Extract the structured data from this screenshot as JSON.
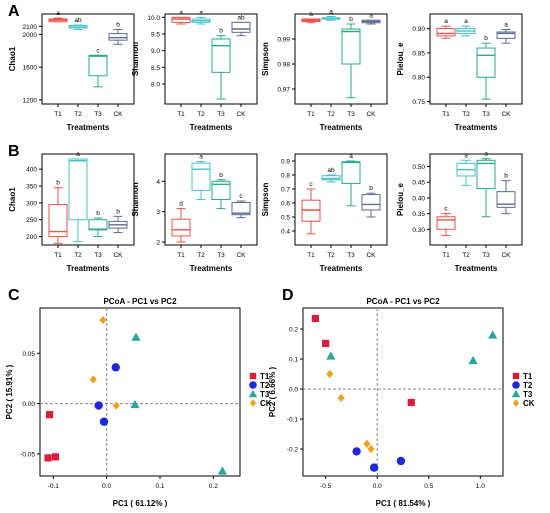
{
  "figure": {
    "colors": {
      "T1": "#e8524f",
      "T2": "#47c3c8",
      "T3": "#2aa98b",
      "CK": "#5e6b94",
      "axis": "#000000",
      "grid_line": "#888888"
    },
    "point_colors": {
      "T1": "#d81e3a",
      "T2": "#1e28e0",
      "T3": "#27a69a",
      "CK": "#f0a020"
    }
  },
  "chart_data": [
    {
      "panel": "A",
      "type": "box",
      "ylabel": "Chao1",
      "xlabel": "Treatments",
      "categories": [
        "T1",
        "T2",
        "T3",
        "CK"
      ],
      "ylim": [
        1150,
        2250
      ],
      "yticks": [
        1200,
        1600,
        2000,
        2100
      ],
      "yticks_shown": [
        "1200",
        "1600",
        "2000",
        "2100"
      ],
      "boxes": [
        {
          "min": 2155,
          "q1": 2155,
          "median": 2175,
          "q3": 2190,
          "max": 2200
        },
        {
          "min": 2060,
          "q1": 2080,
          "median": 2090,
          "q3": 2110,
          "max": 2115
        },
        {
          "min": 1360,
          "q1": 1495,
          "median": 1735,
          "q3": 1745,
          "max": 1745
        },
        {
          "min": 1880,
          "q1": 1930,
          "median": 1960,
          "q3": 2010,
          "max": 2060
        }
      ],
      "letters": [
        "a",
        "ab",
        "c",
        "b"
      ]
    },
    {
      "panel": "A",
      "type": "box",
      "ylabel": "Shannon",
      "xlabel": "Treatments",
      "categories": [
        "T1",
        "T2",
        "T3",
        "CK"
      ],
      "ylim": [
        7.4,
        10.1
      ],
      "yticks_shown": [
        "8.0",
        "8.5",
        "9.0",
        "9.5",
        "10.0"
      ],
      "yticks": [
        8.0,
        8.5,
        9.0,
        9.5,
        10.0
      ],
      "boxes": [
        {
          "min": 9.8,
          "q1": 9.85,
          "median": 9.95,
          "q3": 10.0,
          "max": 10.0
        },
        {
          "min": 9.8,
          "q1": 9.85,
          "median": 9.9,
          "q3": 9.95,
          "max": 10.0
        },
        {
          "min": 7.55,
          "q1": 8.35,
          "median": 9.15,
          "q3": 9.35,
          "max": 9.45
        },
        {
          "min": 9.45,
          "q1": 9.55,
          "median": 9.65,
          "q3": 9.85,
          "max": 9.85
        }
      ],
      "letters": [
        "a",
        "a",
        "b",
        "ab"
      ]
    },
    {
      "panel": "A",
      "type": "box",
      "ylabel": "Simpson",
      "xlabel": "Treatments",
      "categories": [
        "T1",
        "T2",
        "T3",
        "CK"
      ],
      "ylim": [
        0.964,
        1.0
      ],
      "yticks_shown": [
        "0.97",
        "0.98",
        "0.99"
      ],
      "yticks": [
        0.97,
        0.98,
        0.99
      ],
      "boxes": [
        {
          "min": 0.9965,
          "q1": 0.997,
          "median": 0.9975,
          "q3": 0.998,
          "max": 0.998
        },
        {
          "min": 0.9975,
          "q1": 0.998,
          "median": 0.998,
          "q3": 0.9985,
          "max": 0.999
        },
        {
          "min": 0.9665,
          "q1": 0.98,
          "median": 0.993,
          "q3": 0.994,
          "max": 0.996
        },
        {
          "min": 0.996,
          "q1": 0.9965,
          "median": 0.997,
          "q3": 0.9975,
          "max": 0.9975
        }
      ],
      "letters": [
        "a",
        "a",
        "b",
        "a"
      ]
    },
    {
      "panel": "A",
      "type": "box",
      "ylabel": "Pielou_e",
      "xlabel": "Treatments",
      "categories": [
        "T1",
        "T2",
        "T3",
        "CK"
      ],
      "ylim": [
        0.745,
        0.93
      ],
      "yticks_shown": [
        "0.75",
        "0.80",
        "0.85",
        "0.90"
      ],
      "yticks": [
        0.75,
        0.8,
        0.85,
        0.9
      ],
      "boxes": [
        {
          "min": 0.88,
          "q1": 0.885,
          "median": 0.89,
          "q3": 0.9,
          "max": 0.905
        },
        {
          "min": 0.885,
          "q1": 0.89,
          "median": 0.895,
          "q3": 0.9,
          "max": 0.905
        },
        {
          "min": 0.755,
          "q1": 0.8,
          "median": 0.845,
          "q3": 0.86,
          "max": 0.87
        },
        {
          "min": 0.87,
          "q1": 0.88,
          "median": 0.89,
          "q3": 0.893,
          "max": 0.898
        }
      ],
      "letters": [
        "a",
        "a",
        "b",
        "a"
      ]
    },
    {
      "panel": "B",
      "type": "box",
      "ylabel": "Chao1",
      "xlabel": "Treatments",
      "categories": [
        "T1",
        "T2",
        "T3",
        "CK"
      ],
      "ylim": [
        175,
        445
      ],
      "yticks_shown": [
        "200",
        "250",
        "300",
        "350",
        "400"
      ],
      "yticks": [
        200,
        250,
        300,
        350,
        400
      ],
      "boxes": [
        {
          "min": 180,
          "q1": 200,
          "median": 215,
          "q3": 295,
          "max": 345
        },
        {
          "min": 185,
          "q1": 250,
          "median": 425,
          "q3": 430,
          "max": 430
        },
        {
          "min": 200,
          "q1": 220,
          "median": 222,
          "q3": 250,
          "max": 255
        },
        {
          "min": 212,
          "q1": 225,
          "median": 235,
          "q3": 245,
          "max": 260
        }
      ],
      "letters": [
        "b",
        "a",
        "b",
        "b"
      ]
    },
    {
      "panel": "B",
      "type": "box",
      "ylabel": "Shannon",
      "xlabel": "Treatments",
      "categories": [
        "T1",
        "T2",
        "T3",
        "CK"
      ],
      "ylim": [
        1.9,
        4.9
      ],
      "yticks_shown": [
        "2",
        "3",
        "4"
      ],
      "yticks": [
        2,
        3,
        4
      ],
      "boxes": [
        {
          "min": 2.0,
          "q1": 2.2,
          "median": 2.4,
          "q3": 2.75,
          "max": 3.1
        },
        {
          "min": 3.4,
          "q1": 3.7,
          "median": 4.4,
          "q3": 4.6,
          "max": 4.65
        },
        {
          "min": 3.1,
          "q1": 3.4,
          "median": 3.9,
          "q3": 4.0,
          "max": 4.05
        },
        {
          "min": 2.8,
          "q1": 2.9,
          "median": 2.95,
          "q3": 3.3,
          "max": 3.35
        }
      ],
      "letters": [
        "d",
        "a",
        "b",
        "c"
      ]
    },
    {
      "panel": "B",
      "type": "box",
      "ylabel": "Simpson",
      "xlabel": "Treatments",
      "categories": [
        "T1",
        "T2",
        "T3",
        "CK"
      ],
      "ylim": [
        0.3,
        0.95
      ],
      "yticks_shown": [
        "0.4",
        "0.5",
        "0.6",
        "0.7",
        "0.8",
        "0.9"
      ],
      "yticks": [
        0.4,
        0.5,
        0.6,
        0.7,
        0.8,
        0.9
      ],
      "boxes": [
        {
          "min": 0.38,
          "q1": 0.47,
          "median": 0.55,
          "q3": 0.62,
          "max": 0.7
        },
        {
          "min": 0.75,
          "q1": 0.765,
          "median": 0.775,
          "q3": 0.795,
          "max": 0.8
        },
        {
          "min": 0.58,
          "q1": 0.74,
          "median": 0.89,
          "q3": 0.895,
          "max": 0.9
        },
        {
          "min": 0.5,
          "q1": 0.55,
          "median": 0.59,
          "q3": 0.66,
          "max": 0.67
        }
      ],
      "letters": [
        "c",
        "ab",
        "a",
        "b"
      ]
    },
    {
      "panel": "B",
      "type": "box",
      "ylabel": "Pielou_e",
      "xlabel": "Treatments",
      "categories": [
        "T1",
        "T2",
        "T3",
        "CK"
      ],
      "ylim": [
        0.25,
        0.54
      ],
      "yticks_shown": [
        "0.30",
        "0.35",
        "0.40",
        "0.45",
        "0.50"
      ],
      "yticks": [
        0.3,
        0.35,
        0.4,
        0.45,
        0.5
      ],
      "boxes": [
        {
          "min": 0.28,
          "q1": 0.3,
          "median": 0.33,
          "q3": 0.34,
          "max": 0.35
        },
        {
          "min": 0.44,
          "q1": 0.47,
          "median": 0.49,
          "q3": 0.51,
          "max": 0.52
        },
        {
          "min": 0.34,
          "q1": 0.43,
          "median": 0.51,
          "q3": 0.52,
          "max": 0.525
        },
        {
          "min": 0.35,
          "q1": 0.37,
          "median": 0.38,
          "q3": 0.42,
          "max": 0.455
        }
      ],
      "letters": [
        "c",
        "a",
        "a",
        "b"
      ]
    },
    {
      "panel": "C",
      "type": "scatter",
      "title": "PCoA - PC1 vs PC2",
      "xlabel": "PC1 ( 61.12% )",
      "ylabel": "PC2 ( 15.91% )",
      "xlim": [
        -0.125,
        0.25
      ],
      "ylim": [
        -0.072,
        0.095
      ],
      "xticks_shown": [
        "-0.1",
        "0.0",
        "0.1",
        "0.2"
      ],
      "xticks": [
        -0.1,
        0.0,
        0.1,
        0.2
      ],
      "yticks_shown": [
        "-0.05",
        "0.00",
        "0.05"
      ],
      "yticks": [
        -0.05,
        0.0,
        0.05
      ],
      "series": [
        {
          "name": "T1",
          "shape": "square",
          "x": [
            -0.107,
            -0.11,
            -0.096
          ],
          "y": [
            -0.011,
            -0.054,
            -0.053
          ]
        },
        {
          "name": "T2",
          "shape": "circle",
          "x": [
            -0.015,
            -0.005,
            0.017
          ],
          "y": [
            -0.002,
            -0.018,
            0.036
          ]
        },
        {
          "name": "T3",
          "shape": "triangle",
          "x": [
            0.055,
            0.053,
            0.217
          ],
          "y": [
            0.066,
            -0.001,
            -0.067
          ]
        },
        {
          "name": "CK",
          "shape": "diamond",
          "x": [
            -0.007,
            -0.025,
            0.018
          ],
          "y": [
            0.083,
            0.024,
            -0.002
          ]
        }
      ],
      "legend": [
        "T1",
        "T2",
        "T3",
        "CK"
      ]
    },
    {
      "panel": "D",
      "type": "scatter",
      "title": "PCoA - PC1 vs PC2",
      "xlabel": "PC1 ( 81.54% )",
      "ylabel": "PC2 ( 6.66% )",
      "xlim": [
        -0.72,
        1.22
      ],
      "ylim": [
        -0.29,
        0.27
      ],
      "xticks_shown": [
        "-0.5",
        "0.0",
        "0.5",
        "1.0"
      ],
      "xticks": [
        -0.5,
        0.0,
        0.5,
        1.0
      ],
      "yticks_shown": [
        "-0.2",
        "-0.1",
        "0.0",
        "0.1",
        "0.2"
      ],
      "yticks": [
        -0.2,
        -0.1,
        0.0,
        0.1,
        0.2
      ],
      "series": [
        {
          "name": "T1",
          "shape": "square",
          "x": [
            -0.6,
            -0.5,
            0.33
          ],
          "y": [
            0.235,
            0.152,
            -0.045
          ]
        },
        {
          "name": "T2",
          "shape": "circle",
          "x": [
            -0.2,
            -0.03,
            0.23
          ],
          "y": [
            -0.208,
            -0.262,
            -0.24
          ]
        },
        {
          "name": "T3",
          "shape": "triangle",
          "x": [
            -0.45,
            0.93,
            1.12
          ],
          "y": [
            0.11,
            0.095,
            0.18
          ]
        },
        {
          "name": "CK",
          "shape": "diamond",
          "x": [
            -0.46,
            -0.35,
            -0.1,
            -0.06
          ],
          "y": [
            0.05,
            -0.03,
            -0.183,
            -0.2
          ]
        }
      ],
      "legend": [
        "T1",
        "T2",
        "T3",
        "CK"
      ]
    }
  ],
  "panel_letters": [
    "A",
    "B",
    "C",
    "D"
  ]
}
